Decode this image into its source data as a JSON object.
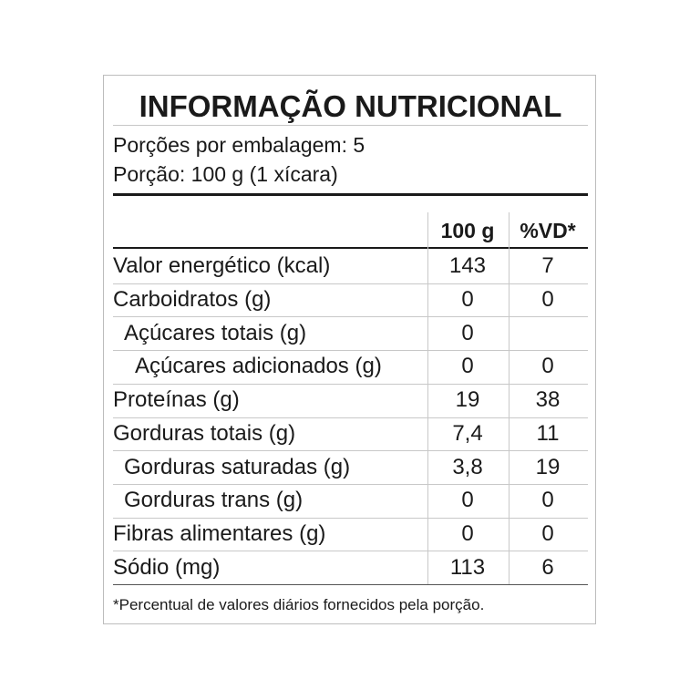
{
  "title": "INFORMAÇÃO NUTRICIONAL",
  "servings_per_package": "Porções por embalagem: 5",
  "serving_size": "Porção: 100 g (1 xícara)",
  "table": {
    "header": [
      "100 g",
      "%VD*"
    ],
    "rows": [
      [
        "Valor energético (kcal)",
        "143",
        "7"
      ],
      [
        "Carboidratos (g)",
        "0",
        "0"
      ],
      [
        "Açúcares totais (g)",
        "0"
      ],
      [
        "Açúcares adicionados (g)",
        "0",
        "0"
      ],
      [
        "Proteínas (g)",
        "19",
        "38"
      ],
      [
        "Gorduras totais (g)",
        "7,4",
        "11"
      ],
      [
        "Gorduras saturadas (g)",
        "3,8",
        "19"
      ],
      [
        "Gorduras trans (g)",
        "0",
        "0"
      ],
      [
        "Fibras alimentares (g)",
        "0",
        "0"
      ],
      [
        "Sódio (mg)",
        "113",
        "6"
      ]
    ]
  },
  "footnote": "*Percentual de valores diários fornecidos pela porção."
}
